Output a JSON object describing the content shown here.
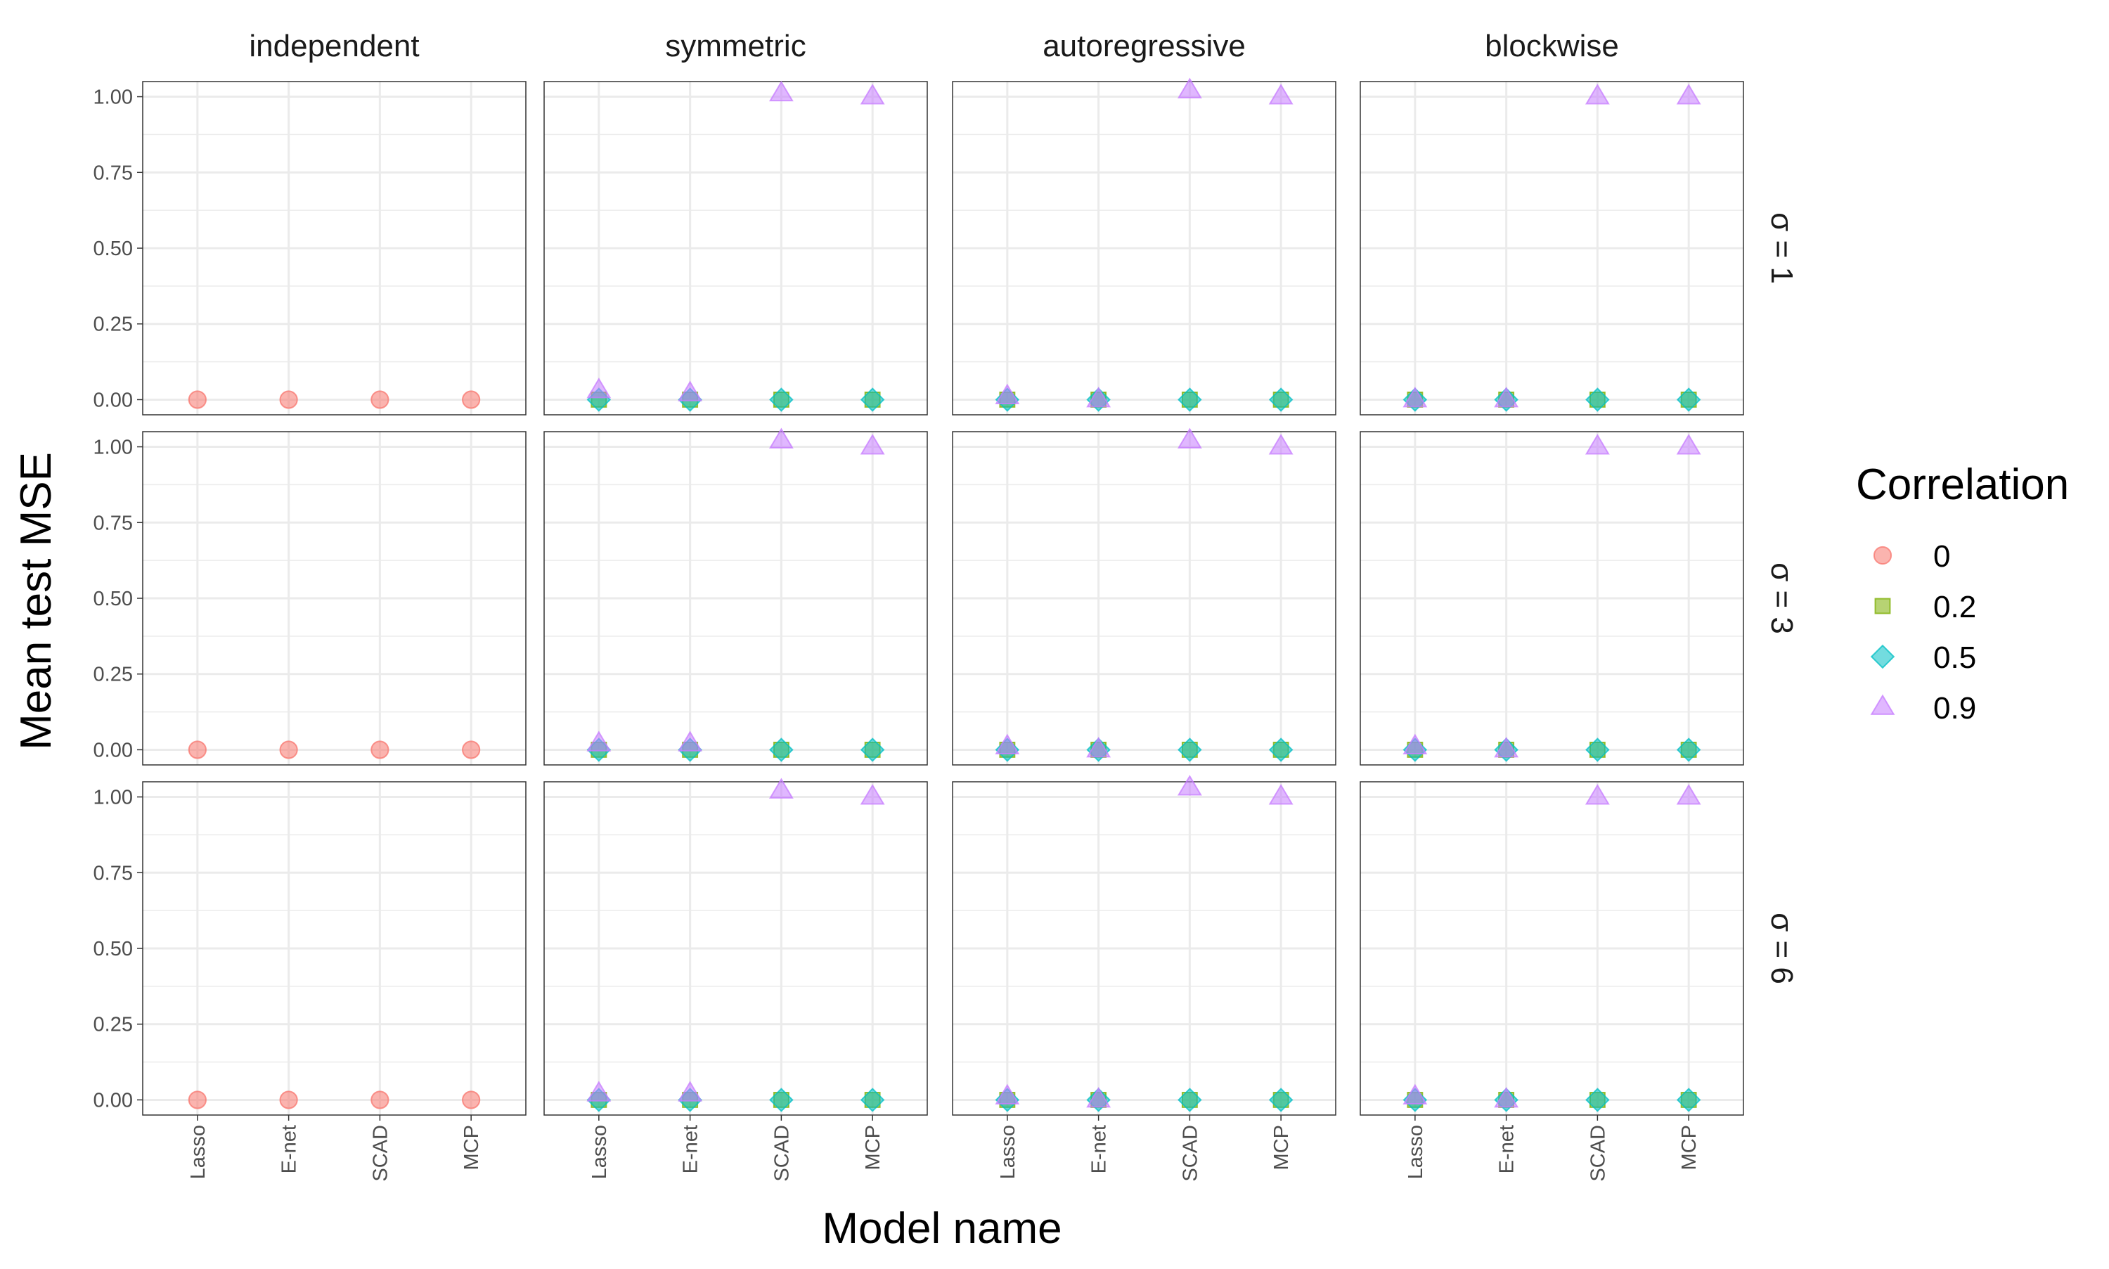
{
  "chart_data": {
    "type": "scatter",
    "xlabel": "Model name",
    "ylabel": "Mean test MSE",
    "categories": [
      "Lasso",
      "E-net",
      "SCAD",
      "MCP"
    ],
    "yticks": [
      "0.00",
      "0.25",
      "0.50",
      "0.75",
      "1.00"
    ],
    "ylim": [
      -0.05,
      1.05
    ],
    "grid": true,
    "columns": [
      "independent",
      "symmetric",
      "autoregressive",
      "blockwise"
    ],
    "rows": [
      "σ = 1",
      "σ = 3",
      "σ = 6"
    ],
    "legend": {
      "title": "Correlation",
      "placement": "right",
      "entries": [
        {
          "label": "0",
          "shape": "circle",
          "color": "#F8766D"
        },
        {
          "label": "0.2",
          "shape": "square",
          "color": "#7CAE00"
        },
        {
          "label": "0.5",
          "shape": "diamond",
          "color": "#00BFC4"
        },
        {
          "label": "0.9",
          "shape": "triangle",
          "color": "#C77CFF"
        }
      ]
    },
    "panels": [
      {
        "column": "independent",
        "row": "σ = 1",
        "series": [
          {
            "correlation": "0",
            "values": [
              0,
              0,
              0,
              0
            ]
          }
        ]
      },
      {
        "column": "symmetric",
        "row": "σ = 1",
        "series": [
          {
            "correlation": "0.2",
            "values": [
              0,
              0,
              0,
              0
            ]
          },
          {
            "correlation": "0.5",
            "values": [
              0,
              0,
              0,
              0
            ]
          },
          {
            "correlation": "0.9",
            "values": [
              0.03,
              0.02,
              1.01,
              1.0
            ]
          }
        ]
      },
      {
        "column": "autoregressive",
        "row": "σ = 1",
        "series": [
          {
            "correlation": "0.2",
            "values": [
              0,
              0,
              0,
              0
            ]
          },
          {
            "correlation": "0.5",
            "values": [
              0,
              0,
              0,
              0
            ]
          },
          {
            "correlation": "0.9",
            "values": [
              0.01,
              0.0,
              1.02,
              1.0
            ]
          }
        ]
      },
      {
        "column": "blockwise",
        "row": "σ = 1",
        "series": [
          {
            "correlation": "0.2",
            "values": [
              0,
              0,
              0,
              0
            ]
          },
          {
            "correlation": "0.5",
            "values": [
              0,
              0,
              0,
              0
            ]
          },
          {
            "correlation": "0.9",
            "values": [
              0.0,
              0.0,
              1.0,
              1.0
            ]
          }
        ]
      },
      {
        "column": "independent",
        "row": "σ = 3",
        "series": [
          {
            "correlation": "0",
            "values": [
              0,
              0,
              0,
              0
            ]
          }
        ]
      },
      {
        "column": "symmetric",
        "row": "σ = 3",
        "series": [
          {
            "correlation": "0.2",
            "values": [
              0,
              0,
              0,
              0
            ]
          },
          {
            "correlation": "0.5",
            "values": [
              0,
              0,
              0,
              0
            ]
          },
          {
            "correlation": "0.9",
            "values": [
              0.02,
              0.02,
              1.02,
              1.0
            ]
          }
        ]
      },
      {
        "column": "autoregressive",
        "row": "σ = 3",
        "series": [
          {
            "correlation": "0.2",
            "values": [
              0,
              0,
              0,
              0
            ]
          },
          {
            "correlation": "0.5",
            "values": [
              0,
              0,
              0,
              0
            ]
          },
          {
            "correlation": "0.9",
            "values": [
              0.01,
              0.0,
              1.02,
              1.0
            ]
          }
        ]
      },
      {
        "column": "blockwise",
        "row": "σ = 3",
        "series": [
          {
            "correlation": "0.2",
            "values": [
              0,
              0,
              0,
              0
            ]
          },
          {
            "correlation": "0.5",
            "values": [
              0,
              0,
              0,
              0
            ]
          },
          {
            "correlation": "0.9",
            "values": [
              0.01,
              0.0,
              1.0,
              1.0
            ]
          }
        ]
      },
      {
        "column": "independent",
        "row": "σ = 6",
        "series": [
          {
            "correlation": "0",
            "values": [
              0,
              0,
              0,
              0
            ]
          }
        ]
      },
      {
        "column": "symmetric",
        "row": "σ = 6",
        "series": [
          {
            "correlation": "0.2",
            "values": [
              0,
              0,
              0,
              0
            ]
          },
          {
            "correlation": "0.5",
            "values": [
              0,
              0,
              0,
              0
            ]
          },
          {
            "correlation": "0.9",
            "values": [
              0.02,
              0.02,
              1.02,
              1.0
            ]
          }
        ]
      },
      {
        "column": "autoregressive",
        "row": "σ = 6",
        "series": [
          {
            "correlation": "0.2",
            "values": [
              0,
              0,
              0,
              0
            ]
          },
          {
            "correlation": "0.5",
            "values": [
              0,
              0,
              0,
              0
            ]
          },
          {
            "correlation": "0.9",
            "values": [
              0.01,
              0.0,
              1.03,
              1.0
            ]
          }
        ]
      },
      {
        "column": "blockwise",
        "row": "σ = 6",
        "series": [
          {
            "correlation": "0.2",
            "values": [
              0,
              0,
              0,
              0
            ]
          },
          {
            "correlation": "0.5",
            "values": [
              0,
              0,
              0,
              0
            ]
          },
          {
            "correlation": "0.9",
            "values": [
              0.01,
              0.0,
              1.0,
              1.0
            ]
          }
        ]
      }
    ]
  }
}
